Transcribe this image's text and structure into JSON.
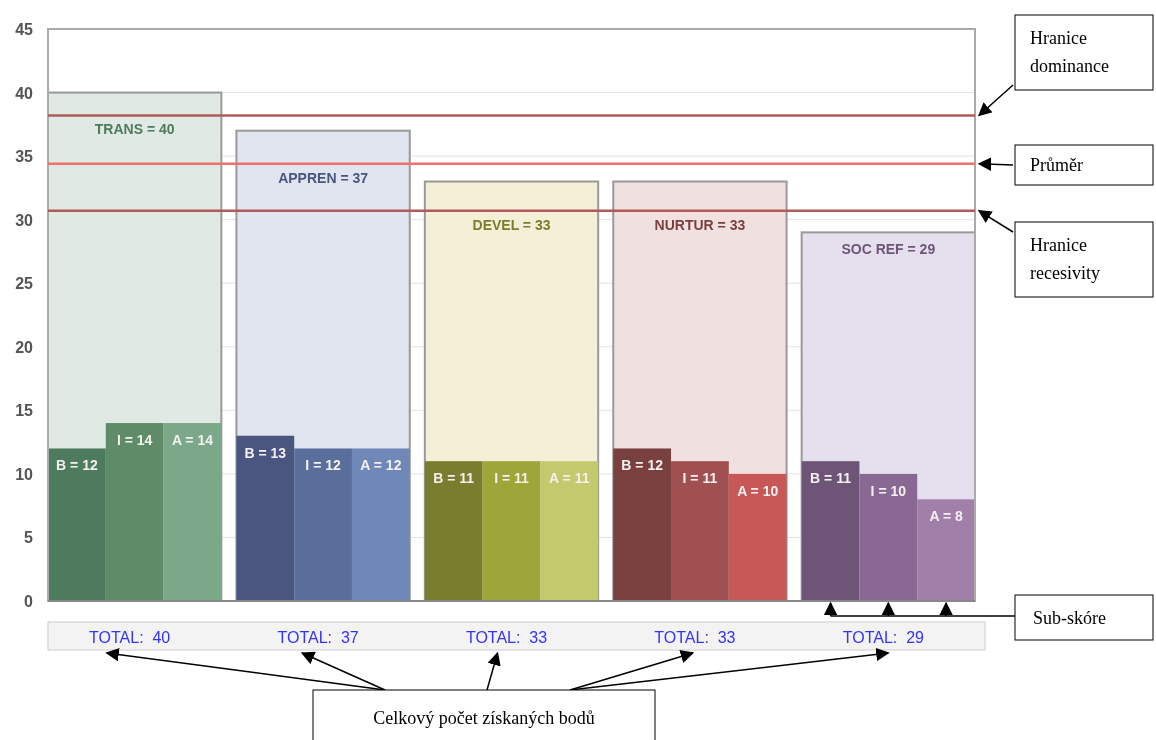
{
  "chart_data": {
    "type": "bar",
    "categories": [
      "TOTAL:  40",
      "TOTAL:  37",
      "TOTAL:  33",
      "TOTAL:  33",
      "TOTAL:  29"
    ],
    "ylim": [
      0,
      45
    ],
    "yticks": [
      0,
      5,
      10,
      15,
      20,
      25,
      30,
      35,
      40,
      45
    ],
    "grid": "y",
    "series": [
      {
        "type": "bar",
        "values": [
          40,
          37,
          33,
          33,
          29
        ],
        "colors": [
          "#e0e9e3",
          "#e1e5f0",
          "#f5efd7",
          "#f0e0e0",
          "#e6e0ee"
        ],
        "value_labels": [
          "TRANS = 40",
          "APPREN = 37",
          "DEVEL = 33",
          "NURTUR = 33",
          "SOC REF = 29"
        ]
      },
      {
        "type": "bar",
        "values": [
          12,
          13,
          11,
          12,
          11
        ],
        "colors": [
          "#4e7a5e",
          "#4a5580",
          "#7a7d2e",
          "#7a4040",
          "#6e5578"
        ],
        "value_labels": [
          "B = 12",
          "B = 13",
          "B = 11",
          "B = 12",
          "B = 11"
        ]
      },
      {
        "type": "bar",
        "values": [
          14,
          12,
          11,
          11,
          10
        ],
        "colors": [
          "#5f8c68",
          "#5a6e9c",
          "#9ea63a",
          "#a05050",
          "#8a6894"
        ],
        "value_labels": [
          "I = 14",
          "I = 12",
          "I = 11",
          "I = 11",
          "I = 10"
        ]
      },
      {
        "type": "bar",
        "values": [
          14,
          12,
          11,
          10,
          8
        ],
        "colors": [
          "#7aa888",
          "#6f88b8",
          "#c5c96e",
          "#c85858",
          "#a080a8"
        ],
        "value_labels": [
          "A = 14",
          "A = 12",
          "A = 11",
          "A = 10",
          "A = 8"
        ]
      }
    ],
    "ref_lines": [
      {
        "axis": "y",
        "value": 38.2,
        "label": "Hranice dominance",
        "color": "#b05a5a"
      },
      {
        "axis": "y",
        "value": 34.4,
        "label": "Průměr",
        "color": "#f07070"
      },
      {
        "axis": "y",
        "value": 30.7,
        "label": "Hranice recesivity",
        "color": "#b05a5a"
      }
    ],
    "annotations": [
      "Sub-skóre",
      "Celkový počet získaných bodů"
    ]
  }
}
